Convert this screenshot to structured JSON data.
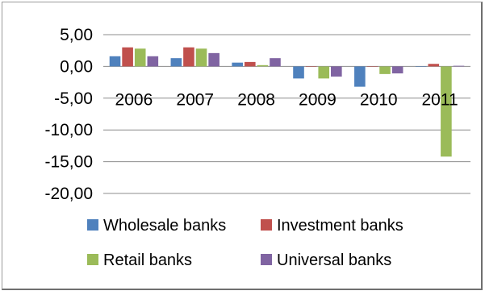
{
  "chart_data": {
    "type": "bar",
    "title": "",
    "xlabel": "",
    "ylabel": "",
    "categories": [
      "2006",
      "2007",
      "2008",
      "2009",
      "2010",
      "2011"
    ],
    "ylim": [
      -20,
      5
    ],
    "yticks": [
      "5,00",
      "0,00",
      "-5,00",
      "-10,00",
      "-15,00",
      "-20,00"
    ],
    "ytick_values": [
      5,
      0,
      -5,
      -10,
      -15,
      -20
    ],
    "grid": true,
    "legend_position": "bottom",
    "series": [
      {
        "name": "Wholesale banks",
        "color": "#4F81BD",
        "values": [
          1.6,
          1.3,
          0.6,
          -1.9,
          -3.2,
          0.0
        ]
      },
      {
        "name": "Investment banks",
        "color": "#C0504D",
        "values": [
          3.0,
          3.0,
          0.7,
          0.0,
          0.0,
          0.4
        ]
      },
      {
        "name": "Retail banks",
        "color": "#9BBB59",
        "values": [
          2.8,
          2.8,
          0.2,
          -1.9,
          -1.2,
          -14.2
        ]
      },
      {
        "name": "Universal banks",
        "color": "#8064A2",
        "values": [
          1.6,
          2.1,
          1.3,
          -1.6,
          -1.1,
          0.1
        ]
      }
    ]
  }
}
